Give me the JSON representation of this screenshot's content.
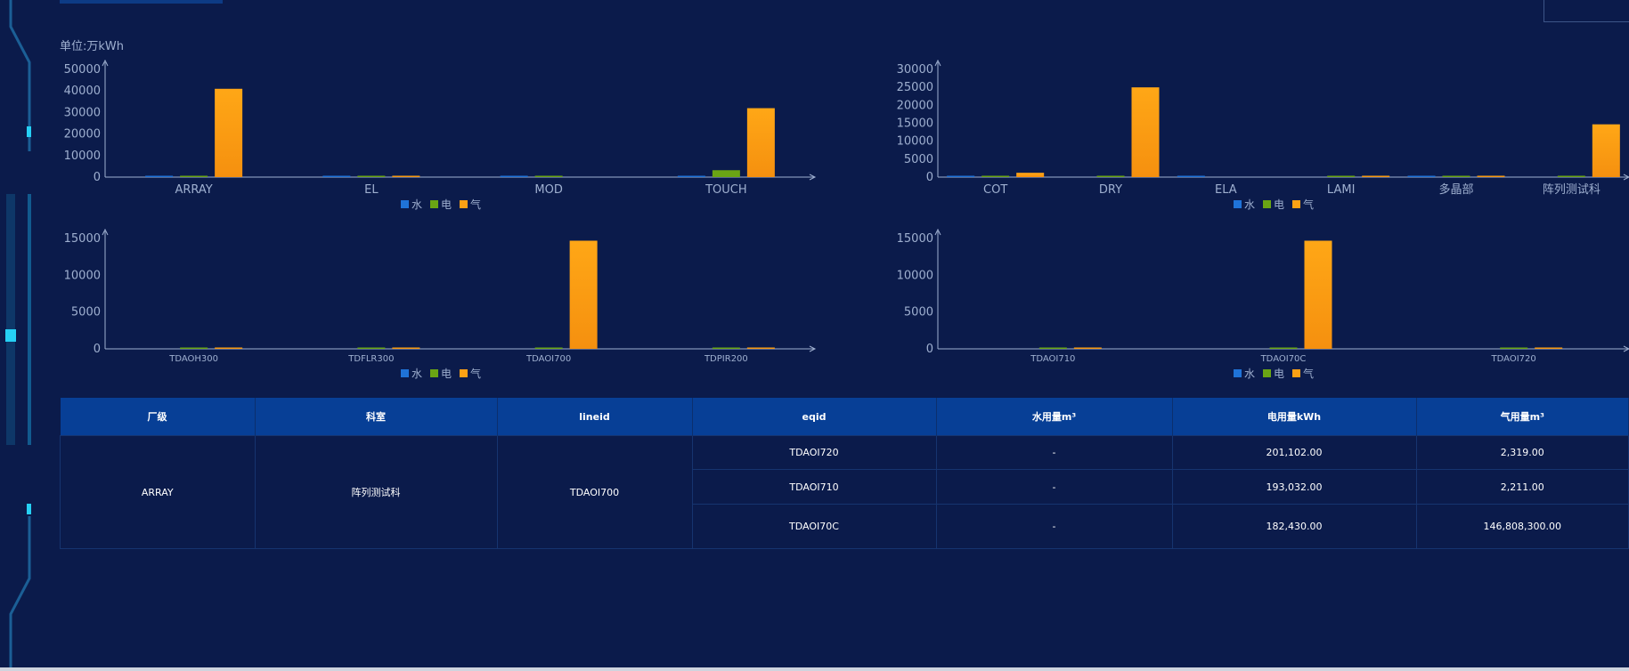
{
  "unit_label": "单位:万kWh",
  "colors": {
    "water": "#1f73d8",
    "electric": "#6aa514",
    "gas": "#fba115",
    "axis": "#9fb0d0"
  },
  "legend": {
    "water": "水",
    "electric": "电",
    "gas": "气"
  },
  "chart_data": [
    {
      "type": "bar",
      "categories": [
        "ARRAY",
        "EL",
        "MOD",
        "TOUCH"
      ],
      "ylim": [
        0,
        50000
      ],
      "yticks": [
        0,
        10000,
        20000,
        30000,
        40000,
        50000
      ],
      "series": [
        {
          "name": "水",
          "values": [
            150,
            100,
            50,
            150
          ]
        },
        {
          "name": "电",
          "values": [
            400,
            500,
            200,
            3200
          ]
        },
        {
          "name": "气",
          "values": [
            41000,
            500,
            0,
            32000
          ]
        }
      ]
    },
    {
      "type": "bar",
      "categories": [
        "COT",
        "DRY",
        "ELA",
        "LAMI",
        "多晶部",
        "阵列测试科"
      ],
      "ylim": [
        0,
        30000
      ],
      "yticks": [
        0,
        5000,
        10000,
        15000,
        20000,
        25000,
        30000
      ],
      "series": [
        {
          "name": "水",
          "values": [
            50,
            0,
            100,
            0,
            50,
            0
          ]
        },
        {
          "name": "电",
          "values": [
            100,
            100,
            0,
            100,
            200,
            100
          ]
        },
        {
          "name": "气",
          "values": [
            1200,
            25000,
            0,
            100,
            100,
            14700
          ]
        }
      ]
    },
    {
      "type": "bar",
      "categories": [
        "TDAOH300",
        "TDFLR300",
        "TDAOI700",
        "TDPIR200"
      ],
      "ylim": [
        0,
        15000
      ],
      "yticks": [
        0,
        5000,
        10000,
        15000
      ],
      "series": [
        {
          "name": "水",
          "values": [
            0,
            0,
            0,
            0
          ]
        },
        {
          "name": "电",
          "values": [
            100,
            100,
            100,
            100
          ]
        },
        {
          "name": "气",
          "values": [
            100,
            100,
            14700,
            100
          ]
        }
      ]
    },
    {
      "type": "bar",
      "categories": [
        "TDAOI710",
        "TDAOI70C",
        "TDAOI720"
      ],
      "ylim": [
        0,
        15000
      ],
      "yticks": [
        0,
        5000,
        10000,
        15000
      ],
      "series": [
        {
          "name": "水",
          "values": [
            0,
            0,
            0
          ]
        },
        {
          "name": "电",
          "values": [
            100,
            100,
            100
          ]
        },
        {
          "name": "气",
          "values": [
            100,
            14700,
            100
          ]
        }
      ]
    }
  ],
  "table": {
    "headers": [
      "厂级",
      "科室",
      "lineid",
      "eqid",
      "水用量m³",
      "电用量kWh",
      "气用量m³"
    ],
    "factory": "ARRAY",
    "dept": "阵列测试科",
    "lineid": "TDAOI700",
    "rows": [
      {
        "eqid": "TDAOI720",
        "water": "-",
        "electric": "201,102.00",
        "gas": "2,319.00"
      },
      {
        "eqid": "TDAOI710",
        "water": "-",
        "electric": "193,032.00",
        "gas": "2,211.00"
      },
      {
        "eqid": "TDAOI70C",
        "water": "-",
        "electric": "182,430.00",
        "gas": "146,808,300.00"
      }
    ]
  }
}
